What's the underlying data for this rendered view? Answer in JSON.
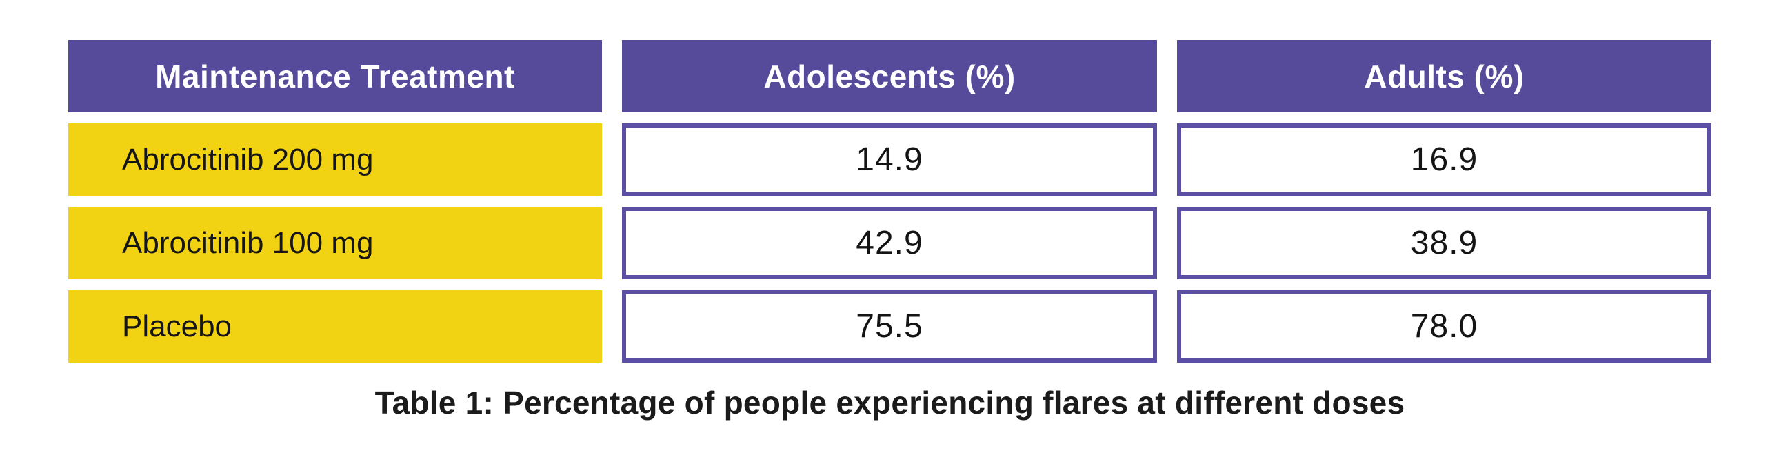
{
  "table": {
    "columns": [
      "Maintenance Treatment",
      "Adolescents (%)",
      "Adults (%)"
    ],
    "rows": [
      {
        "label": "Abrocitinib 200 mg",
        "adolescents": "14.9",
        "adults": "16.9"
      },
      {
        "label": "Abrocitinib 100 mg",
        "adolescents": "42.9",
        "adults": "38.9"
      },
      {
        "label": "Placebo",
        "adolescents": "75.5",
        "adults": "78.0"
      }
    ],
    "caption": "Table 1: Percentage of people experiencing flares at different doses"
  },
  "colors": {
    "header_background": "#564A9A",
    "row_label_background": "#F2D313",
    "value_cell_border": "#5A4FA3",
    "header_text": "#FFFFFF",
    "body_text": "#161616",
    "page_background": "#FFFFFF"
  },
  "chart_data": {
    "type": "table",
    "title": "Table 1: Percentage of people experiencing flares at different doses",
    "columns": [
      "Maintenance Treatment",
      "Adolescents (%)",
      "Adults (%)"
    ],
    "categories": [
      "Abrocitinib 200 mg",
      "Abrocitinib 100 mg",
      "Placebo"
    ],
    "series": [
      {
        "name": "Adolescents (%)",
        "values": [
          14.9,
          42.9,
          75.5
        ]
      },
      {
        "name": "Adults (%)",
        "values": [
          16.9,
          38.9,
          78.0
        ]
      }
    ]
  }
}
